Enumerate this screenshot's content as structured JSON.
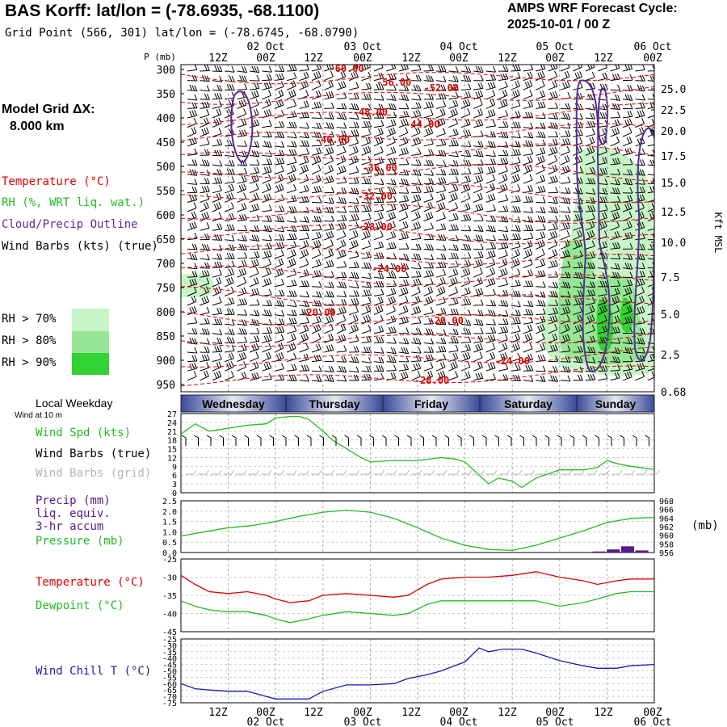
{
  "header": {
    "title": "BAS Korff:  lat/lon = (-78.6935, -68.1100)",
    "subtitle": "Grid Point (566, 301) lat/lon = (-78.6745, -68.0790)",
    "cycle_line1": "AMPS WRF Forecast Cycle:",
    "cycle_line2": "2025-10-01 / 00  Z"
  },
  "model_grid": {
    "line1": "Model Grid ΔX:",
    "line2": "8.000 km"
  },
  "legend": {
    "temperature": "Temperature (°C)",
    "rh": "RH (%, WRT liq. wat.)",
    "cloud": "Cloud/Precip Outline",
    "wind_barbs": "Wind Barbs (kts) (true)",
    "rh70": "RH > 70%",
    "rh80": "RH > 80%",
    "rh90": "RH > 90%"
  },
  "colors": {
    "temperature": "#dd0000",
    "rh70": "#c8f5c8",
    "rh80": "#96e696",
    "rh90": "#32d232",
    "cloud": "#5a2a9a",
    "wind_speed": "#22bb22",
    "pressure": "#22bb22",
    "precip": "#5a1a8a",
    "dewpoint": "#22bb22",
    "wind_chill": "#1a1aaa",
    "grid_barbs": "#b4b4b4"
  },
  "time_axis": {
    "ticks": [
      "12Z",
      "00Z",
      "12Z",
      "00Z",
      "12Z",
      "00Z",
      "12Z",
      "00Z",
      "12Z",
      "00Z"
    ],
    "dates": [
      "02 Oct",
      "03 Oct",
      "04 Oct",
      "05 Oct",
      "06 Oct"
    ],
    "weekdays": [
      "Wednesday",
      "Thursday",
      "Friday",
      "Saturday",
      "Sunday"
    ]
  },
  "labels": {
    "p_mb": "P (mb)",
    "kft": "Kft MSL",
    "local_weekday": "Local Weekday",
    "wind_at": "Wind at 10 m",
    "wind_spd": "Wind Spd (kts)",
    "wind_barbs_true": "Wind Barbs (true)",
    "wind_barbs_grid": "Wind Barbs (grid)",
    "precip1": "Precip (mm)",
    "precip2": "liq. equiv.",
    "precip3": "3-hr accum",
    "pressure": "Pressure (mb)",
    "mb_unit": "(mb)",
    "temperature": "Temperature (°C)",
    "dewpoint": "Dewpoint (°C)",
    "wind_chill": "Wind Chill T (°C)"
  },
  "chart_data": [
    {
      "type": "line",
      "name": "cross-section",
      "y_left_ticks": [
        "300",
        "350",
        "400",
        "450",
        "500",
        "550",
        "600",
        "650",
        "700",
        "750",
        "800",
        "850",
        "900",
        "950"
      ],
      "y_right_ticks": [
        "25.0",
        "22.5",
        "20.0",
        "17.5",
        "15.0",
        "12.5",
        "10.0",
        "7.5",
        "5.0",
        "2.5",
        "0.68"
      ],
      "y_left_range": [
        290,
        965
      ],
      "temperature_labels": [
        {
          "text": "-60.00",
          "t": 0.35,
          "p": 305
        },
        {
          "text": "-56.00",
          "t": 0.45,
          "p": 333
        },
        {
          "text": "-52.00",
          "t": 0.55,
          "p": 345
        },
        {
          "text": "-48.00",
          "t": 0.4,
          "p": 395
        },
        {
          "text": "-44.00",
          "t": 0.51,
          "p": 420
        },
        {
          "text": "-40.00",
          "t": 0.32,
          "p": 452
        },
        {
          "text": "-36.00",
          "t": 0.42,
          "p": 510
        },
        {
          "text": "-32.00",
          "t": 0.41,
          "p": 568
        },
        {
          "text": "-28.00",
          "t": 0.41,
          "p": 632
        },
        {
          "text": "-24.00",
          "t": 0.44,
          "p": 718
        },
        {
          "text": "-20.00",
          "t": 0.29,
          "p": 808
        },
        {
          "text": "-20.00",
          "t": 0.56,
          "p": 825
        },
        {
          "text": "-24.00",
          "t": 0.7,
          "p": 908
        },
        {
          "text": "-28.00",
          "t": 0.53,
          "p": 948
        }
      ]
    },
    {
      "type": "line",
      "name": "wind",
      "y_ticks": [
        "27",
        "24",
        "21",
        "18",
        "15",
        "12",
        "9",
        "6",
        "3",
        "0"
      ],
      "ylim": [
        0,
        27
      ],
      "series": [
        {
          "name": "Wind Spd (kts)",
          "x": [
            0,
            0.03,
            0.06,
            0.1,
            0.14,
            0.18,
            0.2,
            0.23,
            0.25,
            0.27,
            0.3,
            0.32,
            0.35,
            0.38,
            0.4,
            0.45,
            0.5,
            0.55,
            0.58,
            0.6,
            0.63,
            0.65,
            0.67,
            0.7,
            0.72,
            0.75,
            0.8,
            0.85,
            0.88,
            0.9,
            0.92,
            0.95,
            1
          ],
          "values": [
            20,
            23.5,
            21,
            22,
            23,
            23.5,
            25.5,
            26,
            26,
            25,
            21,
            18,
            15,
            12,
            10.5,
            11,
            11,
            12,
            11.5,
            10.5,
            6,
            3,
            5,
            4,
            1.8,
            5,
            7.8,
            7.8,
            8.6,
            11,
            10,
            9,
            8
          ]
        }
      ]
    },
    {
      "type": "line",
      "name": "pressure-precip",
      "y_left_ticks": [
        "2.5",
        "2.0",
        "1.5",
        "1.0",
        "0.5",
        "0.0"
      ],
      "y_right_ticks": [
        "968",
        "966",
        "964",
        "962",
        "960",
        "958",
        "956"
      ],
      "ylim": [
        0,
        2.5
      ],
      "series": [
        {
          "name": "Pressure (mb)",
          "x": [
            0,
            0.05,
            0.1,
            0.15,
            0.2,
            0.25,
            0.3,
            0.35,
            0.4,
            0.45,
            0.5,
            0.55,
            0.6,
            0.65,
            0.7,
            0.75,
            0.8,
            0.85,
            0.9,
            0.95,
            1
          ],
          "values": [
            0.8,
            1.0,
            1.2,
            1.3,
            1.5,
            1.75,
            1.95,
            2.05,
            1.95,
            1.65,
            1.2,
            0.7,
            0.35,
            0.15,
            0.1,
            0.35,
            0.7,
            1.05,
            1.45,
            1.65,
            1.7
          ]
        },
        {
          "name": "Precip (mm)",
          "x": [
            0.87,
            0.9,
            0.93,
            0.96
          ],
          "values": [
            0.05,
            0.15,
            0.3,
            0.1
          ]
        }
      ]
    },
    {
      "type": "line",
      "name": "temperature",
      "y_ticks": [
        "-25",
        "-30",
        "-35",
        "-40",
        "-45"
      ],
      "ylim": [
        -45,
        -25
      ],
      "series": [
        {
          "name": "Temperature (°C)",
          "x": [
            0,
            0.03,
            0.06,
            0.1,
            0.14,
            0.18,
            0.2,
            0.23,
            0.27,
            0.3,
            0.35,
            0.4,
            0.45,
            0.48,
            0.52,
            0.55,
            0.6,
            0.65,
            0.7,
            0.75,
            0.8,
            0.85,
            0.88,
            0.92,
            0.95,
            1
          ],
          "values": [
            -29.5,
            -32,
            -34,
            -34.5,
            -34,
            -35,
            -36,
            -37,
            -36.5,
            -35,
            -34.5,
            -35,
            -35.5,
            -35,
            -32,
            -30.5,
            -30,
            -30,
            -29.5,
            -28.5,
            -30,
            -31,
            -32,
            -31,
            -30.5,
            -30.5
          ]
        },
        {
          "name": "Dewpoint (°C)",
          "x": [
            0,
            0.03,
            0.06,
            0.1,
            0.14,
            0.18,
            0.2,
            0.23,
            0.27,
            0.3,
            0.35,
            0.4,
            0.45,
            0.48,
            0.52,
            0.55,
            0.6,
            0.65,
            0.7,
            0.75,
            0.8,
            0.85,
            0.88,
            0.92,
            0.95,
            1
          ],
          "values": [
            -36.5,
            -38,
            -39,
            -39.5,
            -39.5,
            -40.5,
            -41.5,
            -42.5,
            -41.5,
            -40.5,
            -39.5,
            -40,
            -40.5,
            -40,
            -37.5,
            -36.5,
            -36.5,
            -36.5,
            -36.5,
            -36.5,
            -38,
            -37,
            -36,
            -34.5,
            -34,
            -34
          ]
        }
      ]
    },
    {
      "type": "line",
      "name": "wind-chill",
      "y_ticks": [
        "-25",
        "-30",
        "-35",
        "-40",
        "-45",
        "-50",
        "-55",
        "-60",
        "-65",
        "-70",
        "-75"
      ],
      "ylim": [
        -75,
        -25
      ],
      "series": [
        {
          "name": "Wind Chill T (°C)",
          "x": [
            0,
            0.03,
            0.06,
            0.1,
            0.14,
            0.18,
            0.2,
            0.23,
            0.27,
            0.3,
            0.35,
            0.4,
            0.45,
            0.48,
            0.52,
            0.55,
            0.6,
            0.63,
            0.65,
            0.68,
            0.72,
            0.75,
            0.8,
            0.85,
            0.88,
            0.92,
            0.95,
            1
          ],
          "values": [
            -60,
            -64,
            -65,
            -66,
            -66,
            -70,
            -72,
            -72,
            -72,
            -66,
            -61,
            -61,
            -60,
            -56,
            -53,
            -50,
            -43,
            -32,
            -35,
            -33,
            -33,
            -36,
            -42,
            -46,
            -48,
            -48,
            -46,
            -45
          ]
        }
      ]
    }
  ]
}
